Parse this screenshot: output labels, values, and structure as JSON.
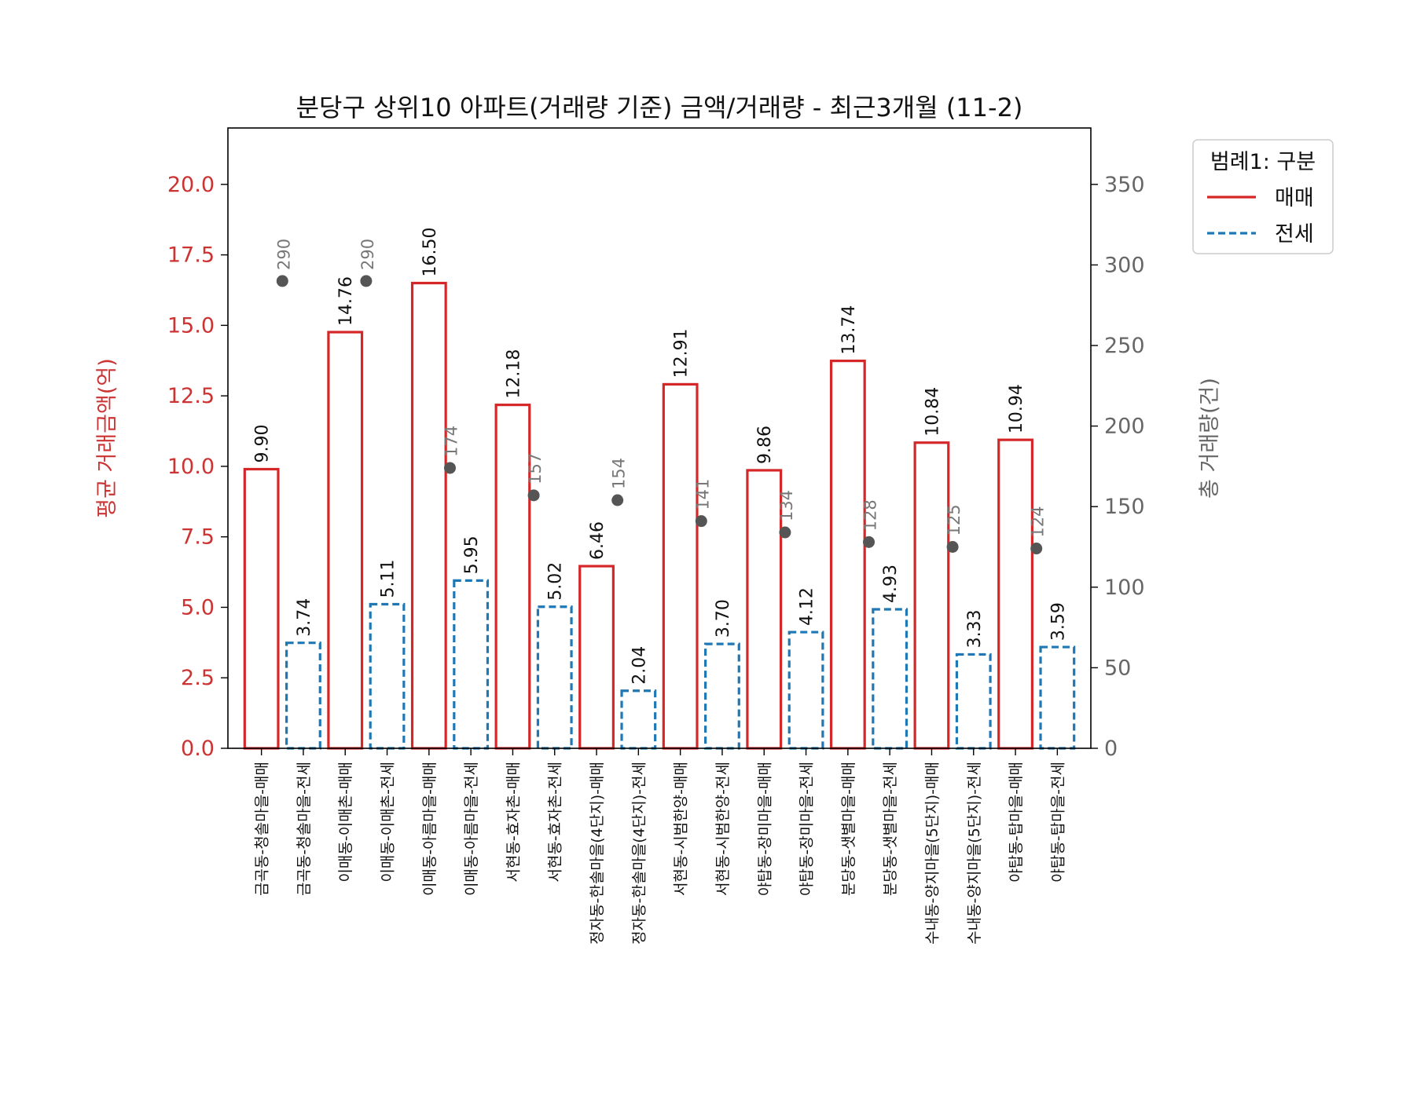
{
  "chart_data": {
    "type": "bar",
    "title": "분당구 상위10 아파트(거래량 기준) 금액/거래량 - 최근3개월 (11-2)",
    "ylabel": "평균 거래금액(억)",
    "ylabel_right": "총 거래량(건)",
    "ylim": [
      0,
      22
    ],
    "ylim_right": [
      0,
      385
    ],
    "yticks": [
      "0.0",
      "2.5",
      "5.0",
      "7.5",
      "10.0",
      "12.5",
      "15.0",
      "17.5",
      "20.0"
    ],
    "yticks_right": [
      "0",
      "50",
      "100",
      "150",
      "200",
      "250",
      "300",
      "350"
    ],
    "categories": [
      "금곡동-청솔마을-매매",
      "금곡동-청솔마을-전세",
      "이매동-이매촌-매매",
      "이매동-이매촌-전세",
      "이매동-아름마을-매매",
      "이매동-아름마을-전세",
      "서현동-효자촌-매매",
      "서현동-효자촌-전세",
      "정자동-한솔마을(4단지)-매매",
      "정자동-한솔마을(4단지)-전세",
      "서현동-시범한양-매매",
      "서현동-시범한양-전세",
      "야탑동-장미마을-매매",
      "야탑동-장미마을-전세",
      "분당동-샛별마을-매매",
      "분당동-샛별마을-전세",
      "수내동-양지마을(5단지)-매매",
      "수내동-양지마을(5단지)-전세",
      "야탑동-탑마을-매매",
      "야탑동-탑마을-전세"
    ],
    "series": [
      {
        "name": "매매",
        "type": "bar",
        "values": [
          9.9,
          0,
          14.76,
          0,
          16.5,
          0,
          12.18,
          0,
          6.46,
          0,
          12.91,
          0,
          9.86,
          0,
          13.74,
          0,
          10.84,
          0,
          10.94,
          0
        ],
        "labels": [
          "9.90",
          "",
          "14.76",
          "",
          "16.50",
          "",
          "12.18",
          "",
          "6.46",
          "",
          "12.91",
          "",
          "9.86",
          "",
          "13.74",
          "",
          "10.84",
          "",
          "10.94",
          ""
        ]
      },
      {
        "name": "전세",
        "type": "bar",
        "values": [
          0,
          3.74,
          0,
          5.11,
          0,
          5.95,
          0,
          5.02,
          0,
          2.04,
          0,
          3.7,
          0,
          4.12,
          0,
          4.93,
          0,
          3.33,
          0,
          3.59
        ],
        "labels": [
          "",
          "3.74",
          "",
          "5.11",
          "",
          "5.95",
          "",
          "5.02",
          "",
          "2.04",
          "",
          "3.70",
          "",
          "4.12",
          "",
          "4.93",
          "",
          "3.33",
          "",
          "3.59"
        ]
      },
      {
        "type": "scatter",
        "axis": "right",
        "points": [
          {
            "category_index": 0.5,
            "value": 290
          },
          {
            "category_index": 2.5,
            "value": 290
          },
          {
            "category_index": 4.5,
            "value": 174
          },
          {
            "category_index": 6.5,
            "value": 157
          },
          {
            "category_index": 8.5,
            "value": 154
          },
          {
            "category_index": 10.5,
            "value": 141
          },
          {
            "category_index": 12.5,
            "value": 134
          },
          {
            "category_index": 14.5,
            "value": 128
          },
          {
            "category_index": 16.5,
            "value": 125
          },
          {
            "category_index": 18.5,
            "value": 124
          }
        ]
      }
    ],
    "legend": {
      "title": "범례1: 구분",
      "entries": [
        "매매",
        "전세"
      ],
      "position": "outside-top-right"
    },
    "colors": {
      "sale": "#d62728",
      "jeonse": "#1f77b4",
      "count": "#555555",
      "left_axis": "#cc3333",
      "right_axis": "#666666"
    },
    "grid": false
  }
}
